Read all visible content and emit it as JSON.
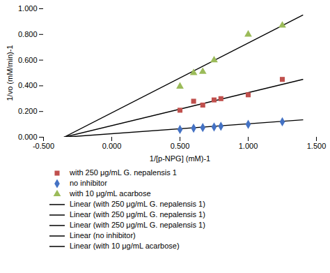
{
  "chart_data": {
    "type": "scatter",
    "xlabel": "1/[p-NPG] (mM)-1",
    "ylabel": "1/vo (mM/min)-1",
    "xlim": [
      -0.5,
      1.5
    ],
    "ylim": [
      0.0,
      1.0
    ],
    "xticks": [
      {
        "value": -0.5,
        "label": "-0.500"
      },
      {
        "value": 0.0,
        "label": "0.000"
      },
      {
        "value": 0.5,
        "label": "0.500"
      },
      {
        "value": 1.0,
        "label": "1.000"
      },
      {
        "value": 1.5,
        "label": "1.500"
      }
    ],
    "yticks": [
      {
        "value": 0.0,
        "label": "0.000"
      },
      {
        "value": 0.2,
        "label": "0.200"
      },
      {
        "value": 0.4,
        "label": "0.400"
      },
      {
        "value": 0.6,
        "label": "0.600"
      },
      {
        "value": 0.8,
        "label": "0.800"
      },
      {
        "value": 1.0,
        "label": "1.000"
      }
    ],
    "grid": false,
    "legend": "bottom",
    "series": [
      {
        "name": "with 250 μg/mL G. nepalensis 1",
        "type": "scatter",
        "marker": "square",
        "color": "#C0504D",
        "x": [
          0.5,
          0.6,
          0.667,
          0.75,
          0.8,
          1.0,
          1.25
        ],
        "values": [
          0.21,
          0.28,
          0.25,
          0.29,
          0.3,
          0.33,
          0.45
        ]
      },
      {
        "name": "no inhibitor",
        "type": "scatter",
        "marker": "diamond",
        "color": "#4472C4",
        "x": [
          0.5,
          0.6,
          0.667,
          0.75,
          0.8,
          1.0,
          1.25
        ],
        "values": [
          0.06,
          0.07,
          0.075,
          0.08,
          0.085,
          0.1,
          0.12
        ]
      },
      {
        "name": "with 10 μg/mL acarbose",
        "type": "scatter",
        "marker": "triangle",
        "color": "#9BBB59",
        "x": [
          0.5,
          0.6,
          0.667,
          0.75,
          1.0,
          1.25
        ],
        "values": [
          0.395,
          0.5,
          0.51,
          0.6,
          0.8,
          0.87
        ]
      },
      {
        "name": "Linear (with 250 μg/mL G. nepalensis 1)",
        "type": "line",
        "line_style": "solid",
        "color": "#000000",
        "x": [
          -0.35,
          1.4
        ],
        "values": [
          0.0,
          0.45
        ]
      },
      {
        "name": "Linear (with 250 μg/mL G. nepalensis 1)",
        "type": "line",
        "line_style": "solid",
        "color": "#000000",
        "x": [],
        "values": []
      },
      {
        "name": "Linear (with 250 μg/mL G. nepalensis 1)",
        "type": "line",
        "line_style": "solid",
        "color": "#000000",
        "x": [],
        "values": []
      },
      {
        "name": "Linear (no inhibitor)",
        "type": "line",
        "line_style": "solid",
        "color": "#000000",
        "x": [
          -0.35,
          1.4
        ],
        "values": [
          0.0,
          0.135
        ]
      },
      {
        "name": "Linear (with 10 μg/mL acarbose)",
        "type": "line",
        "line_style": "solid",
        "color": "#000000",
        "x": [
          -0.35,
          1.4
        ],
        "values": [
          0.0,
          0.95
        ]
      }
    ]
  }
}
